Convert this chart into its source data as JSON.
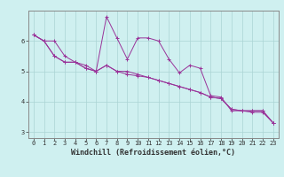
{
  "xlabel": "Windchill (Refroidissement éolien,°C)",
  "ylabel": "",
  "background_color": "#cff0f0",
  "grid_color": "#aad4d4",
  "line_color": "#993399",
  "spine_color": "#888888",
  "x_hours": [
    0,
    1,
    2,
    3,
    4,
    5,
    6,
    7,
    8,
    9,
    10,
    11,
    12,
    13,
    14,
    15,
    16,
    17,
    18,
    19,
    20,
    21,
    22,
    23
  ],
  "series1": [
    6.2,
    6.0,
    6.0,
    5.5,
    5.3,
    5.2,
    5.0,
    5.2,
    5.0,
    5.0,
    4.9,
    4.8,
    4.7,
    4.6,
    4.5,
    4.4,
    4.3,
    4.15,
    4.1,
    3.75,
    3.7,
    3.7,
    3.7,
    3.3
  ],
  "series2": [
    6.2,
    6.0,
    5.5,
    5.3,
    5.3,
    5.1,
    5.0,
    6.8,
    6.1,
    5.4,
    6.1,
    6.1,
    6.0,
    5.4,
    4.95,
    5.2,
    5.1,
    4.2,
    4.15,
    3.7,
    3.7,
    3.65,
    3.65,
    3.3
  ],
  "series3": [
    6.2,
    6.0,
    5.5,
    5.3,
    5.3,
    5.1,
    5.0,
    5.2,
    5.0,
    4.9,
    4.85,
    4.8,
    4.7,
    4.6,
    4.5,
    4.4,
    4.3,
    4.15,
    4.1,
    3.75,
    3.7,
    3.7,
    3.7,
    3.3
  ],
  "ylim": [
    2.8,
    7.0
  ],
  "xlim": [
    -0.5,
    23.5
  ],
  "yticks": [
    3,
    4,
    5,
    6
  ],
  "xtick_labels": [
    "0",
    "1",
    "2",
    "3",
    "4",
    "5",
    "6",
    "7",
    "8",
    "9",
    "10",
    "11",
    "12",
    "13",
    "14",
    "15",
    "16",
    "17",
    "18",
    "19",
    "20",
    "21",
    "22",
    "23"
  ],
  "label_fontsize": 5.0,
  "tick_fontsize": 5.0,
  "xlabel_fontsize": 6.0
}
